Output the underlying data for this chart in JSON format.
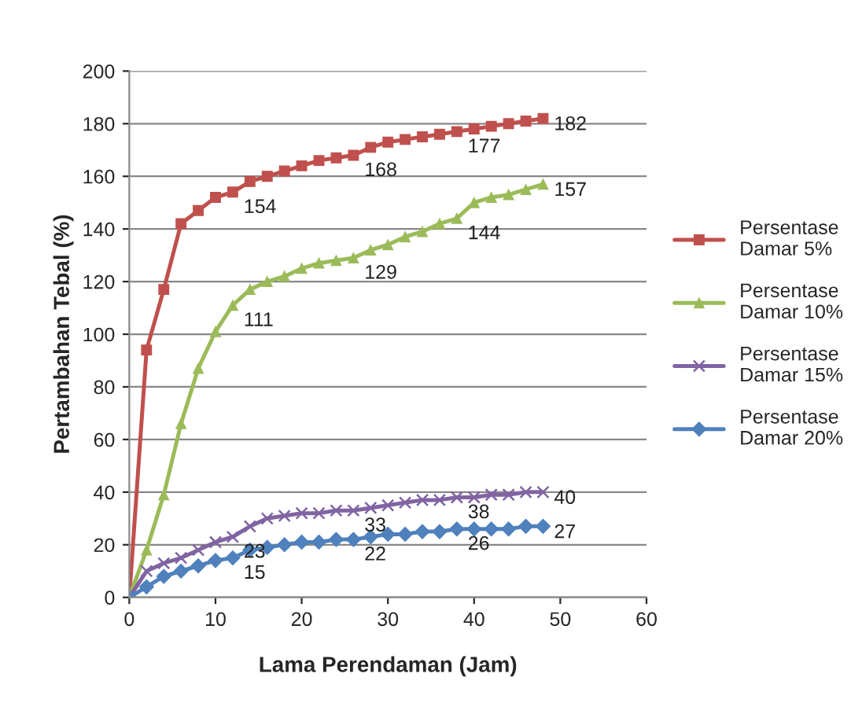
{
  "chart_data": {
    "type": "line",
    "xlabel": "Lama Perendaman (Jam)",
    "ylabel": "Pertambahan Tebal (%)",
    "x": [
      0,
      2,
      4,
      6,
      8,
      10,
      12,
      14,
      16,
      18,
      20,
      22,
      24,
      26,
      28,
      30,
      32,
      34,
      36,
      38,
      40,
      42,
      44,
      46,
      48
    ],
    "series": [
      {
        "name": "Persentase Damar 5%",
        "color": "#c0504d",
        "marker": "square",
        "values": [
          0,
          94,
          117,
          142,
          147,
          152,
          154,
          158,
          160,
          162,
          164,
          166,
          167,
          168,
          171,
          173,
          174,
          175,
          176,
          177,
          178,
          179,
          180,
          181,
          182
        ],
        "value_labels": [
          null,
          null,
          null,
          null,
          null,
          null,
          "154",
          null,
          null,
          null,
          null,
          null,
          null,
          "168",
          null,
          null,
          null,
          null,
          null,
          "177",
          null,
          null,
          null,
          null,
          "182"
        ]
      },
      {
        "name": "Persentase Damar 10%",
        "color": "#9bbb59",
        "marker": "triangle",
        "values": [
          0,
          18,
          39,
          66,
          87,
          101,
          111,
          117,
          120,
          122,
          125,
          127,
          128,
          129,
          132,
          134,
          137,
          139,
          142,
          144,
          150,
          152,
          153,
          155,
          157
        ],
        "value_labels": [
          null,
          null,
          null,
          null,
          null,
          null,
          "111",
          null,
          null,
          null,
          null,
          null,
          null,
          "129",
          null,
          null,
          null,
          null,
          null,
          "144",
          null,
          null,
          null,
          null,
          "157"
        ]
      },
      {
        "name": "Persentase Damar 15%",
        "color": "#8064a2",
        "marker": "cross",
        "values": [
          0,
          10,
          13,
          15,
          18,
          21,
          23,
          27,
          30,
          31,
          32,
          32,
          33,
          33,
          34,
          35,
          36,
          37,
          37,
          38,
          38,
          39,
          39,
          40,
          40
        ],
        "value_labels": [
          null,
          null,
          null,
          null,
          null,
          null,
          "23",
          null,
          null,
          null,
          null,
          null,
          null,
          "33",
          null,
          null,
          null,
          null,
          null,
          "38",
          null,
          null,
          null,
          null,
          "40"
        ]
      },
      {
        "name": "Persentase Damar 20%",
        "color": "#4f81bd",
        "marker": "diamond",
        "values": [
          0,
          4,
          8,
          10,
          12,
          14,
          15,
          18,
          19,
          20,
          21,
          21,
          22,
          22,
          23,
          24,
          24,
          25,
          25,
          26,
          26,
          26,
          26,
          27,
          27
        ],
        "value_labels": [
          null,
          null,
          null,
          null,
          null,
          null,
          "15",
          null,
          null,
          null,
          null,
          null,
          null,
          "22",
          null,
          null,
          null,
          null,
          null,
          "26",
          null,
          null,
          null,
          null,
          "27"
        ]
      }
    ],
    "xlim": [
      0,
      60
    ],
    "xticks": [
      0,
      10,
      20,
      30,
      40,
      50,
      60
    ],
    "ylim": [
      0,
      200
    ],
    "yticks": [
      0,
      20,
      40,
      60,
      80,
      100,
      120,
      140,
      160,
      180,
      200
    ],
    "grid": "y",
    "legend": "right"
  }
}
